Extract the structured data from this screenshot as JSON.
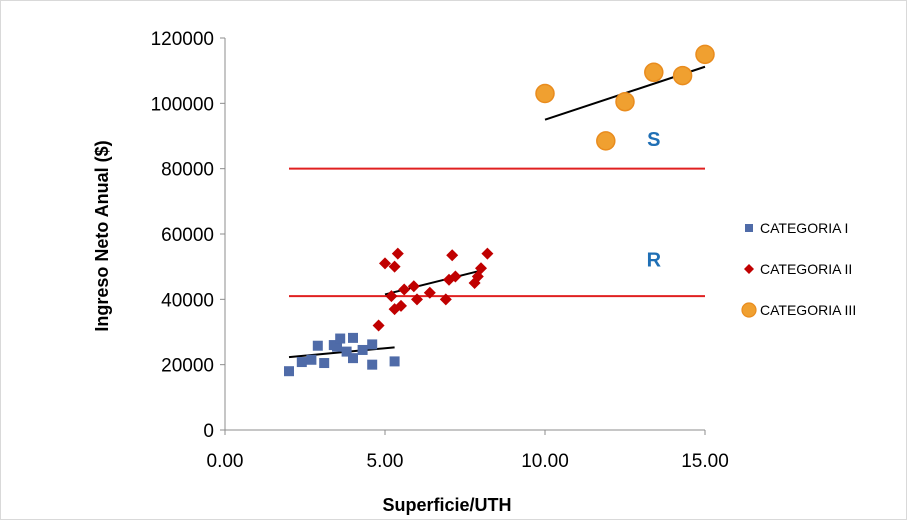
{
  "chart_data": {
    "type": "scatter",
    "title": "",
    "xlabel": "Superficie/UTH",
    "ylabel": "Ingreso Neto Anual ($)",
    "xlim": [
      0,
      15
    ],
    "ylim": [
      0,
      120000
    ],
    "x_ticks": [
      0,
      5,
      10,
      15
    ],
    "x_tick_labels": [
      "0.00",
      "5.00",
      "10.00",
      "15.00"
    ],
    "y_ticks": [
      0,
      20000,
      40000,
      60000,
      80000,
      100000,
      120000
    ],
    "y_tick_labels": [
      "0",
      "20000",
      "40000",
      "60000",
      "80000",
      "100000",
      "120000"
    ],
    "grid": false,
    "legend_position": "right",
    "series": [
      {
        "name": "CATEGORIA I",
        "marker": "square",
        "color": "#4F6BA8",
        "points": [
          [
            2.0,
            18000
          ],
          [
            2.4,
            20800
          ],
          [
            2.7,
            21500
          ],
          [
            2.9,
            25800
          ],
          [
            3.1,
            20500
          ],
          [
            3.4,
            26000
          ],
          [
            3.5,
            25500
          ],
          [
            3.6,
            28000
          ],
          [
            3.8,
            24000
          ],
          [
            4.0,
            28200
          ],
          [
            4.0,
            22000
          ],
          [
            4.3,
            24500
          ],
          [
            4.6,
            26200
          ],
          [
            4.6,
            20000
          ],
          [
            5.3,
            21000
          ]
        ],
        "trend": [
          [
            2.0,
            22300
          ],
          [
            5.3,
            25300
          ]
        ]
      },
      {
        "name": "CATEGORIA II",
        "marker": "diamond",
        "color": "#C00000",
        "points": [
          [
            4.8,
            32000
          ],
          [
            5.0,
            51000
          ],
          [
            5.2,
            41000
          ],
          [
            5.3,
            50000
          ],
          [
            5.3,
            37000
          ],
          [
            5.4,
            54000
          ],
          [
            5.5,
            38000
          ],
          [
            5.6,
            43000
          ],
          [
            5.9,
            44000
          ],
          [
            6.0,
            40000
          ],
          [
            6.4,
            42000
          ],
          [
            6.9,
            40000
          ],
          [
            7.0,
            46000
          ],
          [
            7.1,
            53500
          ],
          [
            7.2,
            47000
          ],
          [
            7.8,
            45000
          ],
          [
            7.9,
            47000
          ],
          [
            8.0,
            49500
          ],
          [
            8.2,
            54000
          ]
        ],
        "trend": [
          [
            5.0,
            41500
          ],
          [
            8.0,
            48800
          ]
        ]
      },
      {
        "name": "CATEGORIA III",
        "marker": "circle",
        "color": "#F0A030",
        "points": [
          [
            10.0,
            103000
          ],
          [
            11.9,
            88500
          ],
          [
            12.5,
            100500
          ],
          [
            13.4,
            109500
          ],
          [
            14.3,
            108500
          ],
          [
            15.0,
            115000
          ]
        ],
        "trend": [
          [
            10.0,
            95000
          ],
          [
            15.0,
            111200
          ]
        ]
      }
    ],
    "reference_lines": [
      {
        "label": "S",
        "y": 80000,
        "x_range": [
          2.0,
          15.0
        ],
        "color": "#E02020",
        "label_color": "#1F6FB5",
        "label_x": 13.4,
        "label_y": 87000
      },
      {
        "label": "R",
        "y": 41000,
        "x_range": [
          2.0,
          15.0
        ],
        "color": "#E02020",
        "label_color": "#1F6FB5",
        "label_x": 13.4,
        "label_y": 50000
      }
    ]
  }
}
